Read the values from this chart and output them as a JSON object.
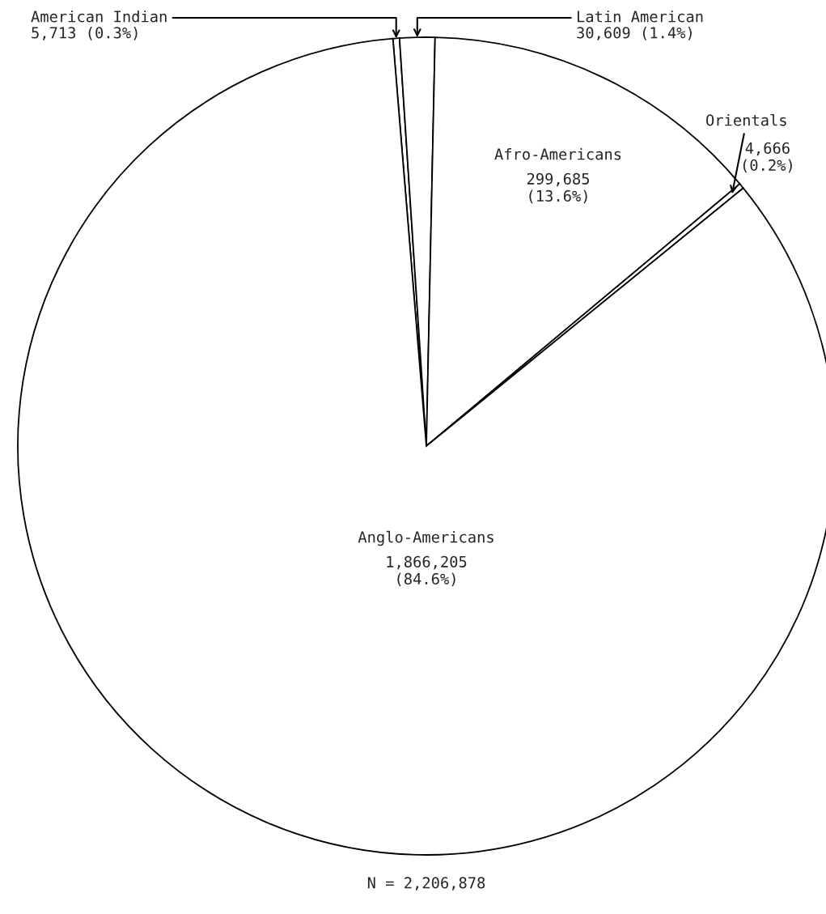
{
  "chart_data": {
    "type": "pie",
    "categories": [
      "American Indian",
      "Latin American",
      "Afro-Americans",
      "Orientals",
      "Anglo-Americans"
    ],
    "values": [
      5713,
      30609,
      299685,
      4666,
      1866205
    ],
    "colors": [
      "#ffffff",
      "#ffffff",
      "#ffffff",
      "#ffffff",
      "#ffffff"
    ],
    "value_labels": [
      "5,713 (0.3%)",
      "30,609 (1.4%)",
      "299,685\n(13.6%)",
      "4,666\n(0.2%)",
      "1,866,205\n(84.6%)"
    ],
    "annotations": [
      "N = 2,206,878"
    ]
  }
}
